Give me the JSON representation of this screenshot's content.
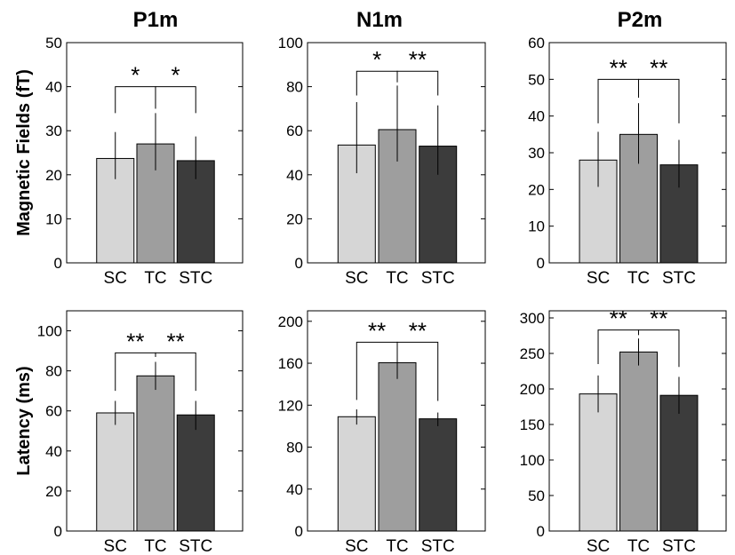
{
  "colors": {
    "SC": "#d6d6d6",
    "TC": "#9e9e9e",
    "STC": "#3c3c3c",
    "axis": "#000000"
  },
  "titles": [
    "P1m",
    "N1m",
    "P2m"
  ],
  "row_labels": [
    "Magnetic Fields (fT)",
    "Latency (ms)"
  ],
  "chart_data": [
    {
      "type": "bar",
      "title": "P1m",
      "ylabel": "Magnetic Fields (fT)",
      "categories": [
        "SC",
        "TC",
        "STC"
      ],
      "values": [
        23.7,
        27.0,
        23.2
      ],
      "err_low": [
        19.0,
        21.0,
        19.0
      ],
      "err_high": [
        29.7,
        34.0,
        28.7
      ],
      "ylim": [
        0,
        50
      ],
      "yticks": [
        0,
        10,
        20,
        30,
        40,
        50
      ],
      "ytick_labels": [
        "0",
        "10",
        "20",
        "30",
        "40",
        "50"
      ],
      "significance": [
        {
          "from": 0,
          "to": 1,
          "label": "*",
          "y": 40,
          "end_y": [
            34,
            35
          ]
        },
        {
          "from": 1,
          "to": 2,
          "label": "*",
          "y": 40,
          "end_y": [
            35,
            34
          ]
        }
      ]
    },
    {
      "type": "bar",
      "title": "N1m",
      "ylabel": "",
      "categories": [
        "SC",
        "TC",
        "STC"
      ],
      "values": [
        53.5,
        60.5,
        53.0
      ],
      "err_low": [
        40.7,
        46.0,
        40.0
      ],
      "err_high": [
        73.0,
        80.5,
        71.5
      ],
      "ylim": [
        0,
        100
      ],
      "yticks": [
        0,
        20,
        40,
        60,
        80,
        100
      ],
      "ytick_labels": [
        "0",
        "20",
        "40",
        "60",
        "80",
        "100"
      ],
      "significance": [
        {
          "from": 0,
          "to": 1,
          "label": "*",
          "y": 87,
          "end_y": [
            76,
            82
          ]
        },
        {
          "from": 1,
          "to": 2,
          "label": "**",
          "y": 87,
          "end_y": [
            82,
            76
          ]
        }
      ]
    },
    {
      "type": "bar",
      "title": "P2m",
      "ylabel": "",
      "categories": [
        "SC",
        "TC",
        "STC"
      ],
      "values": [
        28.0,
        35.0,
        26.7
      ],
      "err_low": [
        20.7,
        27.0,
        20.5
      ],
      "err_high": [
        35.7,
        43.5,
        33.5
      ],
      "ylim": [
        0,
        60
      ],
      "yticks": [
        0,
        10,
        20,
        30,
        40,
        50,
        60
      ],
      "ytick_labels": [
        "0",
        "10",
        "20",
        "30",
        "40",
        "50",
        "60"
      ],
      "significance": [
        {
          "from": 0,
          "to": 1,
          "label": "**",
          "y": 50,
          "end_y": [
            38,
            45
          ]
        },
        {
          "from": 1,
          "to": 2,
          "label": "**",
          "y": 50,
          "end_y": [
            45,
            38
          ]
        }
      ]
    },
    {
      "type": "bar",
      "title": "",
      "ylabel": "Latency (ms)",
      "categories": [
        "SC",
        "TC",
        "STC"
      ],
      "values": [
        59.0,
        77.5,
        58.0
      ],
      "err_low": [
        53.0,
        70.5,
        50.5
      ],
      "err_high": [
        65.0,
        84.5,
        65.0
      ],
      "ylim": [
        0,
        110
      ],
      "yticks": [
        0,
        20,
        40,
        60,
        80,
        100
      ],
      "ytick_labels": [
        "0",
        "20",
        "40",
        "60",
        "80",
        "100"
      ],
      "significance": [
        {
          "from": 0,
          "to": 1,
          "label": "**",
          "y": 89,
          "end_y": [
            70,
            87
          ]
        },
        {
          "from": 1,
          "to": 2,
          "label": "**",
          "y": 89,
          "end_y": [
            87,
            70
          ]
        }
      ]
    },
    {
      "type": "bar",
      "title": "",
      "ylabel": "",
      "categories": [
        "SC",
        "TC",
        "STC"
      ],
      "values": [
        109.0,
        160.5,
        107.0
      ],
      "err_low": [
        101.5,
        145.0,
        100.0
      ],
      "err_high": [
        116.0,
        175.0,
        113.0
      ],
      "ylim": [
        0,
        210
      ],
      "yticks": [
        0,
        40,
        80,
        120,
        160,
        200
      ],
      "ytick_labels": [
        "0",
        "40",
        "80",
        "120",
        "160",
        "200"
      ],
      "significance": [
        {
          "from": 0,
          "to": 1,
          "label": "**",
          "y": 180,
          "end_y": [
            125,
            175
          ]
        },
        {
          "from": 1,
          "to": 2,
          "label": "**",
          "y": 180,
          "end_y": [
            175,
            124
          ]
        }
      ]
    },
    {
      "type": "bar",
      "title": "",
      "ylabel": "",
      "categories": [
        "SC",
        "TC",
        "STC"
      ],
      "values": [
        193.0,
        252.0,
        191.0
      ],
      "err_low": [
        167.0,
        233.0,
        165.0
      ],
      "err_high": [
        219.0,
        271.0,
        217.0
      ],
      "ylim": [
        0,
        310
      ],
      "yticks": [
        0,
        50,
        100,
        150,
        200,
        250,
        300
      ],
      "ytick_labels": [
        "0",
        "50",
        "100",
        "150",
        "200",
        "250",
        "300"
      ],
      "significance": [
        {
          "from": 0,
          "to": 1,
          "label": "**",
          "y": 283,
          "end_y": [
            235,
            276
          ]
        },
        {
          "from": 1,
          "to": 2,
          "label": "**",
          "y": 283,
          "end_y": [
            276,
            231
          ]
        }
      ]
    }
  ]
}
